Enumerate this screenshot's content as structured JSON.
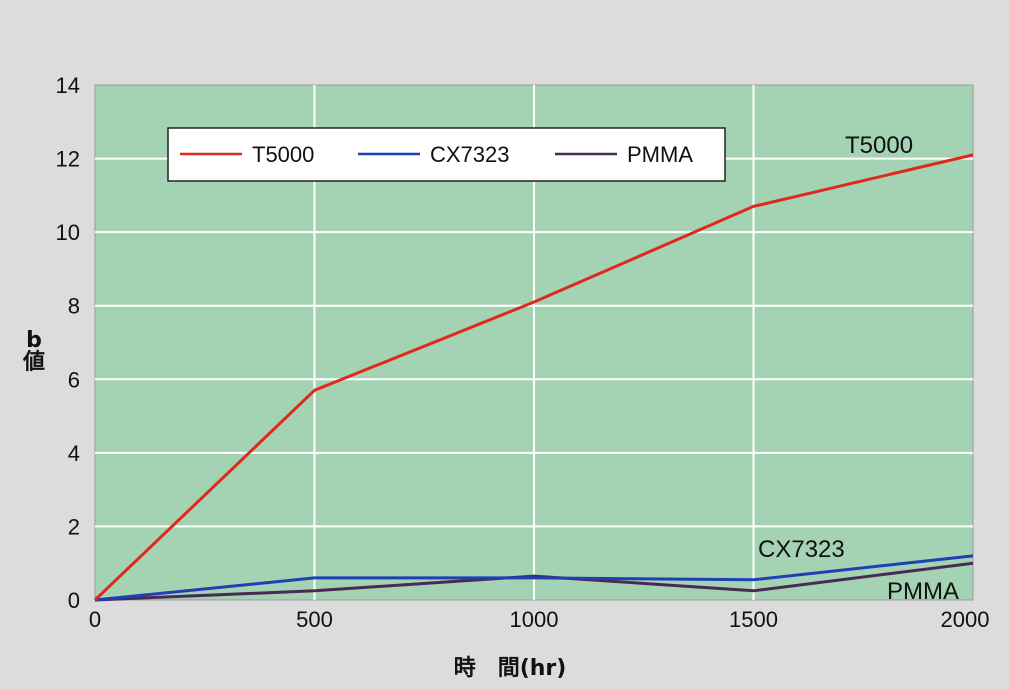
{
  "colors": {
    "page_background": "#dcdcdc",
    "plot_background": "#a3d3b3",
    "grid": "#ffffff"
  },
  "chart_data": {
    "type": "line",
    "title": "",
    "xlabel": "時　間(hr)",
    "ylabel_top": "b",
    "ylabel_bottom": "値",
    "x": [
      0,
      500,
      1000,
      1500,
      2000
    ],
    "xlim": [
      0,
      2000
    ],
    "ylim": [
      0,
      14
    ],
    "x_ticks": [
      "0",
      "500",
      "1000",
      "1500",
      "2000"
    ],
    "y_ticks": [
      "0",
      "2",
      "4",
      "6",
      "8",
      "10",
      "12",
      "14"
    ],
    "grid": true,
    "legend_position": "top-left",
    "series": [
      {
        "name": "T5000",
        "color": "#e0291e",
        "values": [
          0,
          5.7,
          8.1,
          10.7,
          12.1
        ]
      },
      {
        "name": "CX7323",
        "color": "#1f3fb5",
        "values": [
          0,
          0.6,
          0.6,
          0.55,
          1.2
        ]
      },
      {
        "name": "PMMA",
        "color": "#4a2a55",
        "values": [
          0,
          0.25,
          0.65,
          0.25,
          1.0
        ]
      }
    ],
    "annotations": [
      {
        "text": "T5000",
        "series": "T5000"
      },
      {
        "text": "CX7323",
        "series": "CX7323"
      },
      {
        "text": "PMMA",
        "series": "PMMA"
      }
    ]
  }
}
